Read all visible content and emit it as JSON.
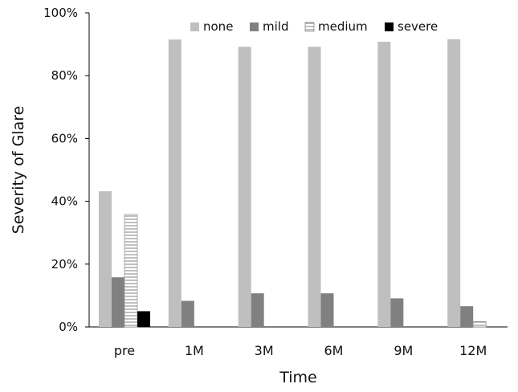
{
  "chart_data": {
    "type": "bar",
    "xlabel": "Time",
    "ylabel": "Severity of Glare",
    "ylim": [
      0,
      100
    ],
    "y_ticks": [
      "0%",
      "20%",
      "40%",
      "60%",
      "80%",
      "100%"
    ],
    "y_tick_values": [
      0,
      20,
      40,
      60,
      80,
      100
    ],
    "categories": [
      "pre",
      "1M",
      "3M",
      "6M",
      "9M",
      "12M"
    ],
    "series": [
      {
        "name": "none",
        "values": [
          43.2,
          91.5,
          89.2,
          89.2,
          90.8,
          91.6
        ],
        "color": "#bfbfbf",
        "pattern": "solid"
      },
      {
        "name": "mild",
        "values": [
          15.8,
          8.3,
          10.7,
          10.7,
          9.1,
          6.6
        ],
        "color": "#808080",
        "pattern": "solid"
      },
      {
        "name": "medium",
        "values": [
          35.8,
          0,
          0,
          0,
          0,
          1.7
        ],
        "color": "#ffffff",
        "pattern": "horizontal-stripes"
      },
      {
        "name": "severe",
        "values": [
          5.0,
          0,
          0,
          0,
          0,
          0
        ],
        "color": "#000000",
        "pattern": "solid"
      }
    ],
    "legend_position": "top-right",
    "grid": false
  }
}
